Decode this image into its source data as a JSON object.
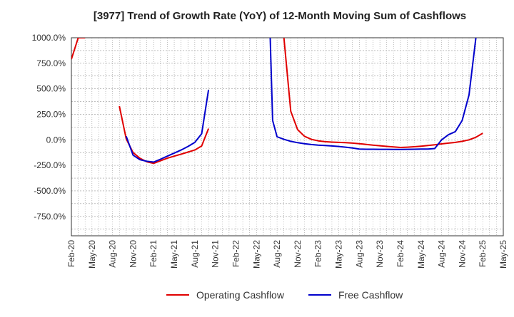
{
  "chart_data": {
    "type": "line",
    "title": "[3977]  Trend of Growth Rate (YoY) of 12-Month Moving Sum of Cashflows",
    "xlabel": "",
    "ylabel": "",
    "x_ticks": [
      "Feb-20",
      "May-20",
      "Aug-20",
      "Nov-20",
      "Feb-21",
      "May-21",
      "Aug-21",
      "Nov-21",
      "Feb-22",
      "May-22",
      "Aug-22",
      "Nov-22",
      "Feb-23",
      "May-23",
      "Aug-23",
      "Nov-23",
      "Feb-24",
      "May-24",
      "Aug-24",
      "Nov-24",
      "Feb-25",
      "May-25"
    ],
    "y_ticks": [
      "1000.0%",
      "750.0%",
      "500.0%",
      "250.0%",
      "0.0%",
      "-250.0%",
      "-500.0%",
      "-750.0%"
    ],
    "y_tick_values": [
      1000,
      750,
      500,
      250,
      0,
      -250,
      -500,
      -750
    ],
    "ylim": [
      -940,
      1000
    ],
    "grid": true,
    "legend_position": "bottom",
    "series": [
      {
        "name": "Operating Cashflow",
        "color": "#e00000",
        "points": [
          [
            "Feb-20",
            790
          ],
          [
            "Mar-20",
            1000
          ],
          [
            "Apr-20",
            1000
          ],
          [
            "May-20",
            null
          ],
          [
            "Jun-20",
            null
          ],
          [
            "Jul-20",
            null
          ],
          [
            "Aug-20",
            null
          ],
          [
            "Sep-20",
            330
          ],
          [
            "Oct-20",
            10
          ],
          [
            "Nov-20",
            -125
          ],
          [
            "Dec-20",
            -180
          ],
          [
            "Jan-21",
            -215
          ],
          [
            "Feb-21",
            -230
          ],
          [
            "Mar-21",
            -205
          ],
          [
            "Apr-21",
            -180
          ],
          [
            "May-21",
            -160
          ],
          [
            "Jun-21",
            -140
          ],
          [
            "Jul-21",
            -120
          ],
          [
            "Aug-21",
            -100
          ],
          [
            "Sep-21",
            -60
          ],
          [
            "Oct-21",
            110
          ],
          [
            "Nov-21",
            null
          ],
          [
            "Jul-22",
            null
          ],
          [
            "Aug-22",
            null
          ],
          [
            "Sep-22",
            1000
          ],
          [
            "Oct-22",
            280
          ],
          [
            "Nov-22",
            100
          ],
          [
            "Dec-22",
            35
          ],
          [
            "Jan-23",
            5
          ],
          [
            "Feb-23",
            -10
          ],
          [
            "Mar-23",
            -18
          ],
          [
            "Apr-23",
            -22
          ],
          [
            "May-23",
            -25
          ],
          [
            "Jun-23",
            -28
          ],
          [
            "Jul-23",
            -32
          ],
          [
            "Aug-23",
            -38
          ],
          [
            "Sep-23",
            -45
          ],
          [
            "Oct-23",
            -52
          ],
          [
            "Nov-23",
            -58
          ],
          [
            "Dec-23",
            -64
          ],
          [
            "Jan-24",
            -70
          ],
          [
            "Feb-24",
            -75
          ],
          [
            "Mar-24",
            -72
          ],
          [
            "Apr-24",
            -68
          ],
          [
            "May-24",
            -62
          ],
          [
            "Jun-24",
            -56
          ],
          [
            "Jul-24",
            -48
          ],
          [
            "Aug-24",
            -40
          ],
          [
            "Sep-24",
            -32
          ],
          [
            "Oct-24",
            -25
          ],
          [
            "Nov-24",
            -15
          ],
          [
            "Dec-24",
            0
          ],
          [
            "Jan-25",
            25
          ],
          [
            "Feb-25",
            65
          ]
        ]
      },
      {
        "name": "Free Cashflow",
        "color": "#0000cc",
        "points": [
          [
            "Oct-20",
            35
          ],
          [
            "Nov-20",
            -150
          ],
          [
            "Dec-20",
            -195
          ],
          [
            "Jan-21",
            -210
          ],
          [
            "Feb-21",
            -218
          ],
          [
            "Mar-21",
            -190
          ],
          [
            "Apr-21",
            -160
          ],
          [
            "May-21",
            -130
          ],
          [
            "Jun-21",
            -100
          ],
          [
            "Jul-21",
            -65
          ],
          [
            "Aug-21",
            -25
          ],
          [
            "Sep-21",
            60
          ],
          [
            "Oct-21",
            490
          ],
          [
            "Nov-21",
            null
          ],
          [
            "Jun-22",
            null
          ],
          [
            "Jul-22",
            1000
          ],
          [
            "Jul-22b",
            190
          ],
          [
            "Aug-22",
            30
          ],
          [
            "Sep-22",
            5
          ],
          [
            "Oct-22",
            -15
          ],
          [
            "Nov-22",
            -28
          ],
          [
            "Dec-22",
            -38
          ],
          [
            "Jan-23",
            -46
          ],
          [
            "Feb-23",
            -52
          ],
          [
            "Mar-23",
            -56
          ],
          [
            "Apr-23",
            -60
          ],
          [
            "May-23",
            -65
          ],
          [
            "Jun-23",
            -72
          ],
          [
            "Jul-23",
            -80
          ],
          [
            "Aug-23",
            -90
          ],
          [
            "Sep-23",
            -92
          ],
          [
            "Oct-23",
            -92
          ],
          [
            "Nov-23",
            -93
          ],
          [
            "Dec-23",
            -93
          ],
          [
            "Jan-24",
            -94
          ],
          [
            "Feb-24",
            -94
          ],
          [
            "Mar-24",
            -93
          ],
          [
            "Apr-24",
            -92
          ],
          [
            "May-24",
            -91
          ],
          [
            "Jun-24",
            -90
          ],
          [
            "Jul-24",
            -85
          ],
          [
            "Aug-24",
            0
          ],
          [
            "Sep-24",
            50
          ],
          [
            "Oct-24",
            80
          ],
          [
            "Nov-24",
            190
          ],
          [
            "Dec-24",
            440
          ],
          [
            "Jan-25",
            1000
          ]
        ]
      }
    ]
  }
}
